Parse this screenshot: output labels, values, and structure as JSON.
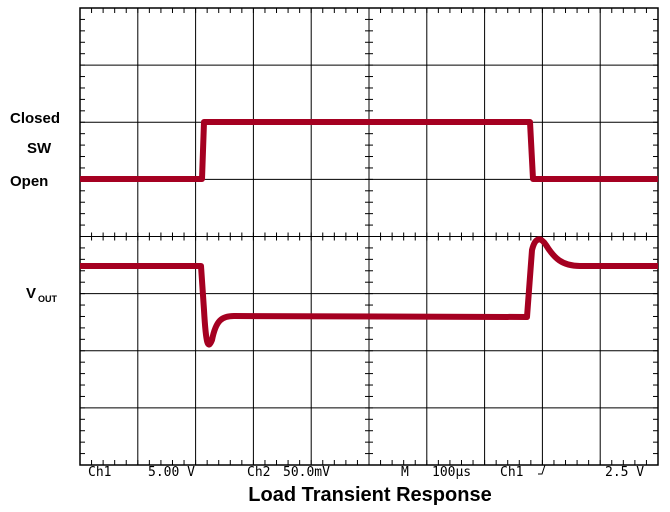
{
  "labels": {
    "closed": "Closed",
    "sw": "SW",
    "open": "Open",
    "vout_main": "V",
    "vout_sub": "OUT"
  },
  "status": {
    "ch1": "Ch1",
    "ch1_scale": "5.00 V",
    "ch2": "Ch2",
    "ch2_scale": "50.0mV",
    "m": "M",
    "timebase": "100µs",
    "trigger_source": "Ch1",
    "trigger_level": "2.5 V"
  },
  "title": "Load Transient Response"
}
